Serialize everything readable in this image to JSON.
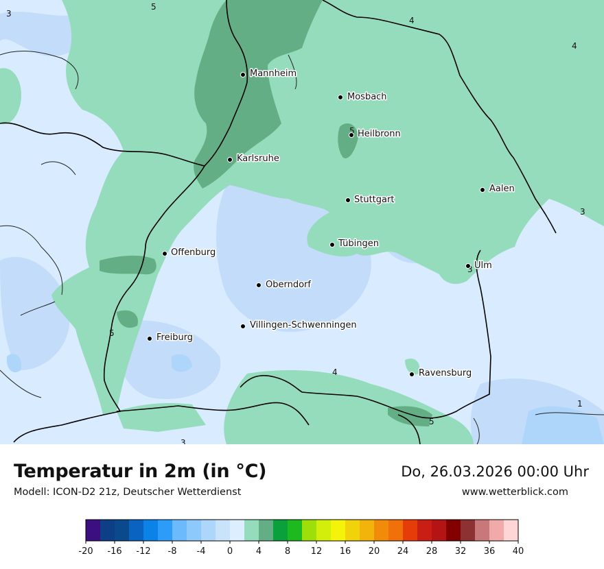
{
  "map": {
    "cities": [
      {
        "name": "Mannheim"
      },
      {
        "name": "Mosbach"
      },
      {
        "name": "Heilbronn"
      },
      {
        "name": "Karlsruhe"
      },
      {
        "name": "Aalen"
      },
      {
        "name": "Stuttgart"
      },
      {
        "name": "Tübingen"
      },
      {
        "name": "Offenburg"
      },
      {
        "name": "Ulm"
      },
      {
        "name": "Oberndorf"
      },
      {
        "name": "Villingen-Schwenningen"
      },
      {
        "name": "Freiburg"
      },
      {
        "name": "Ravensburg"
      }
    ],
    "isotherm_labels": [
      "5",
      "3",
      "4",
      "4",
      "5",
      "3",
      "3",
      "5",
      "4",
      "1",
      "5",
      "3"
    ],
    "colors": {
      "water_light": "#d9ebff",
      "cool_blue": "#c3dcfa",
      "mint": "#94dcbc",
      "green_dark": "#64ae85",
      "border": "#000000"
    }
  },
  "footer": {
    "title": "Temperatur in 2m (in °C)",
    "subtitle": "Modell: ICON-D2 21z, Deutscher Wetterdienst",
    "datetime": "Do, 26.03.2026 00:00 Uhr",
    "website": "www.wetterblick.com"
  },
  "legend": {
    "ticks": [
      "-20",
      "-16",
      "-12",
      "-8",
      "-4",
      "0",
      "4",
      "8",
      "12",
      "16",
      "20",
      "24",
      "28",
      "32",
      "36",
      "40"
    ],
    "colors": [
      "#3b0f80",
      "#0c3f86",
      "#0a4a8c",
      "#0a63c0",
      "#0a82e8",
      "#2c9cf8",
      "#6cb9fb",
      "#8ec9fb",
      "#aed6fb",
      "#c9e3fb",
      "#ddeeff",
      "#94dcbc",
      "#64ae85",
      "#0aa03c",
      "#1eb91e",
      "#9ede0a",
      "#d2ee0a",
      "#f4f40a",
      "#f2d20a",
      "#f2b40a",
      "#f08c0a",
      "#f0700a",
      "#e63c0a",
      "#c81e14",
      "#b41414",
      "#820000",
      "#8c3232",
      "#c87878",
      "#f0aaaa",
      "#ffd6d6"
    ]
  }
}
